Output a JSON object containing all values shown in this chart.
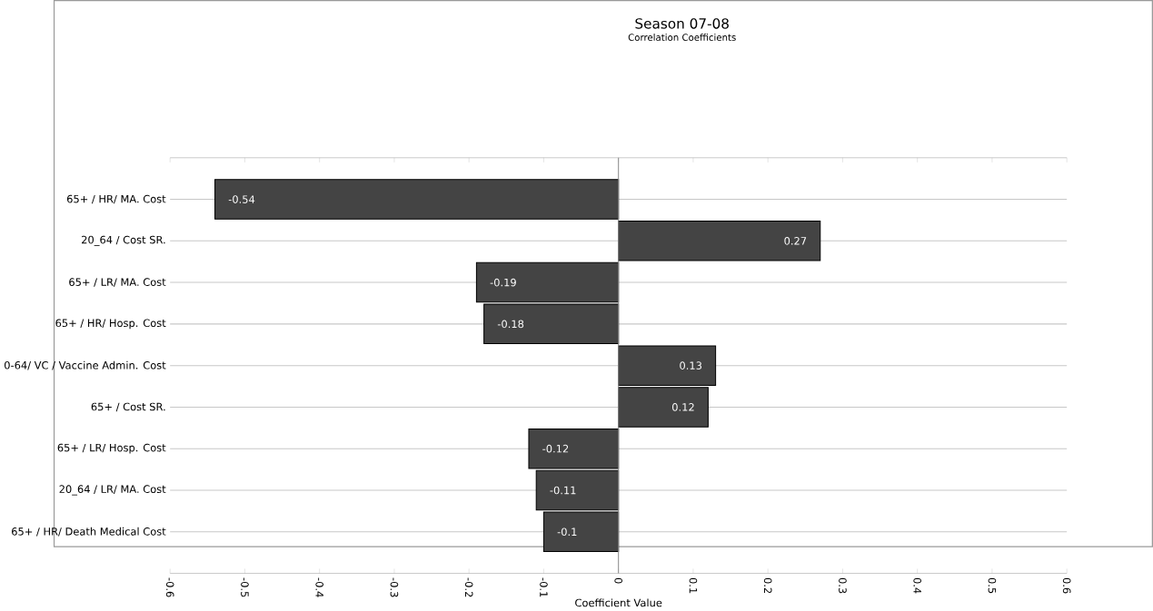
{
  "chart_data": {
    "type": "bar",
    "orientation": "horizontal",
    "title": "Season 07-08",
    "subtitle": "Correlation Coefficients",
    "xlabel": "Coefficient Value",
    "categories": [
      "65+ / HR/ MA. Cost",
      "20_64 / Cost SR.",
      "65+ / LR/ MA. Cost",
      "65+ / HR/ Hosp. Cost",
      "0-64/ VC / Vaccine Admin. Cost",
      "65+ / Cost SR.",
      "65+ / LR/ Hosp. Cost",
      "20_64 / LR/ MA. Cost",
      "65+ / HR/ Death Medical Cost"
    ],
    "values": [
      -0.54,
      0.27,
      -0.19,
      -0.18,
      0.13,
      0.12,
      -0.12,
      -0.11,
      -0.1
    ],
    "color": "#444444",
    "data_labels": true,
    "grid": "y",
    "xlim": [
      -0.6,
      0.6
    ],
    "xticks": [
      -0.6,
      -0.5,
      -0.4,
      -0.3,
      -0.2,
      -0.1,
      0,
      0.1,
      0.2,
      0.3,
      0.4,
      0.5,
      0.6
    ]
  }
}
